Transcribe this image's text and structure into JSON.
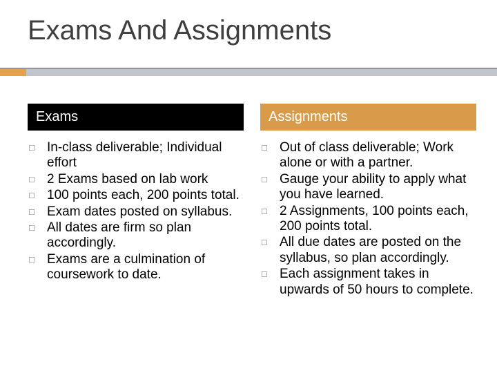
{
  "title": "Exams And Assignments",
  "accent_color": "#e0a24b",
  "band_grey": "#c2c6cc",
  "rule_grey": "#8f95a5",
  "columns": {
    "left": {
      "header": "Exams",
      "header_bg": "#000000",
      "items": [
        "In-class deliverable; Individual effort",
        "2 Exams based on lab work",
        "100 points each, 200 points total.",
        "Exam dates posted on syllabus.",
        "All dates are firm so plan accordingly.",
        "Exams are a culmination of coursework to date."
      ]
    },
    "right": {
      "header": "Assignments",
      "header_bg": "#d79b4a",
      "items": [
        "Out of class deliverable; Work alone or with a partner.",
        "Gauge your ability to apply what you have learned.",
        "2 Assignments, 100 points each, 200 points total.",
        "All due dates are posted on the syllabus, so plan accordingly.",
        "Each assignment takes in upwards of 50 hours to complete."
      ]
    }
  },
  "bullet_glyph": "□",
  "text": {
    "font_family": "Arial",
    "title_fontsize": 40,
    "title_color": "#3f3f3f",
    "header_fontsize": 20,
    "body_fontsize": 19,
    "body_color": "#000000"
  }
}
